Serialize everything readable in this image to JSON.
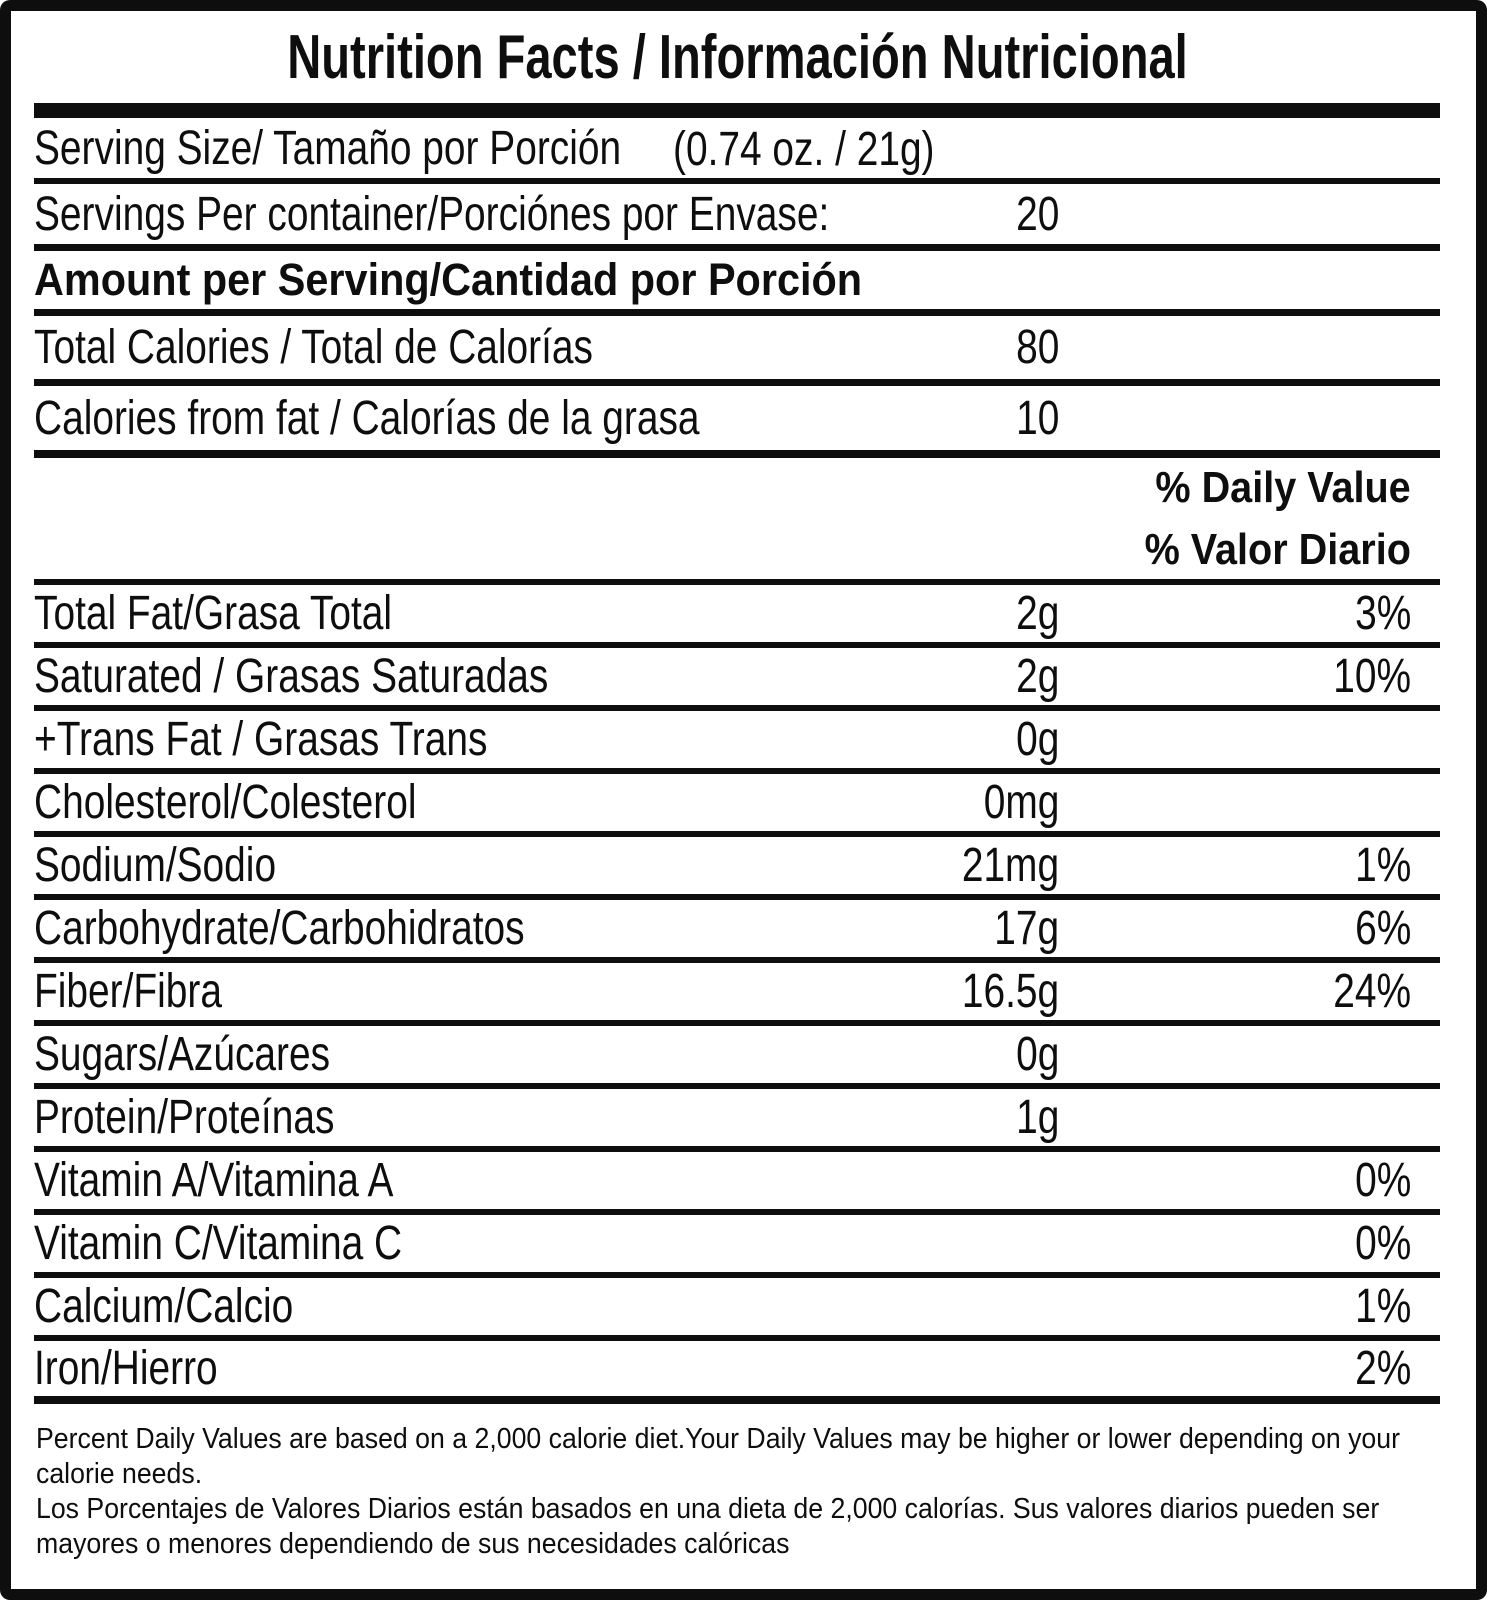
{
  "title": "Nutrition Facts / Información Nutricional",
  "serving_size": {
    "label": "Serving Size/ Tamaño por Porción",
    "value": "(0.74 oz. / 21g)"
  },
  "servings_per_container": {
    "label": "Servings Per container/Porciónes por Envase:",
    "value": "20"
  },
  "amount_header": "Amount per Serving/Cantidad por Porción",
  "calories_rows": [
    {
      "label": "Total Calories / Total de Calorías",
      "amount": "80"
    },
    {
      "label": "Calories from fat / Calorías de la grasa",
      "amount": "10"
    }
  ],
  "daily_value_header": {
    "en": "% Daily Value",
    "es": "% Valor Diario"
  },
  "nutrient_rows": [
    {
      "label": "Total Fat/Grasa Total",
      "amount": "2g",
      "dv": "3%"
    },
    {
      "label": "Saturated / Grasas Saturadas",
      "amount": "2g",
      "dv": "10%"
    },
    {
      "label": "+Trans Fat / Grasas Trans",
      "amount": "0g",
      "dv": ""
    },
    {
      "label": "Cholesterol/Colesterol",
      "amount": "0mg",
      "dv": ""
    },
    {
      "label": "Sodium/Sodio",
      "amount": "21mg",
      "dv": "1%"
    },
    {
      "label": "Carbohydrate/Carbohidratos",
      "amount": "17g",
      "dv": "6%"
    },
    {
      "label": "Fiber/Fibra",
      "amount": "16.5g",
      "dv": "24%"
    },
    {
      "label": "Sugars/Azúcares",
      "amount": "0g",
      "dv": ""
    },
    {
      "label": "Protein/Proteínas",
      "amount": "1g",
      "dv": ""
    },
    {
      "label": "Vitamin A/Vitamina A",
      "amount": "",
      "dv": "0%"
    },
    {
      "label": "Vitamin C/Vitamina C",
      "amount": "",
      "dv": "0%"
    },
    {
      "label": "Calcium/Calcio",
      "amount": "",
      "dv": "1%"
    },
    {
      "label": "Iron/Hierro",
      "amount": "",
      "dv": "2%"
    }
  ],
  "footnote": {
    "lines": [
      "Percent Daily Values are based on a 2,000 calorie diet.Your Daily Values may be higher or lower depending on your",
      "calorie needs.",
      "Los Porcentajes de Valores Diarios están basados en una dieta de 2,000 calorías. Sus valores diarios pueden ser",
      "mayores o menores dependiendo de sus necesidades calóricas"
    ]
  },
  "colors": {
    "ink": "#0e0e0e",
    "background": "#ffffff"
  }
}
